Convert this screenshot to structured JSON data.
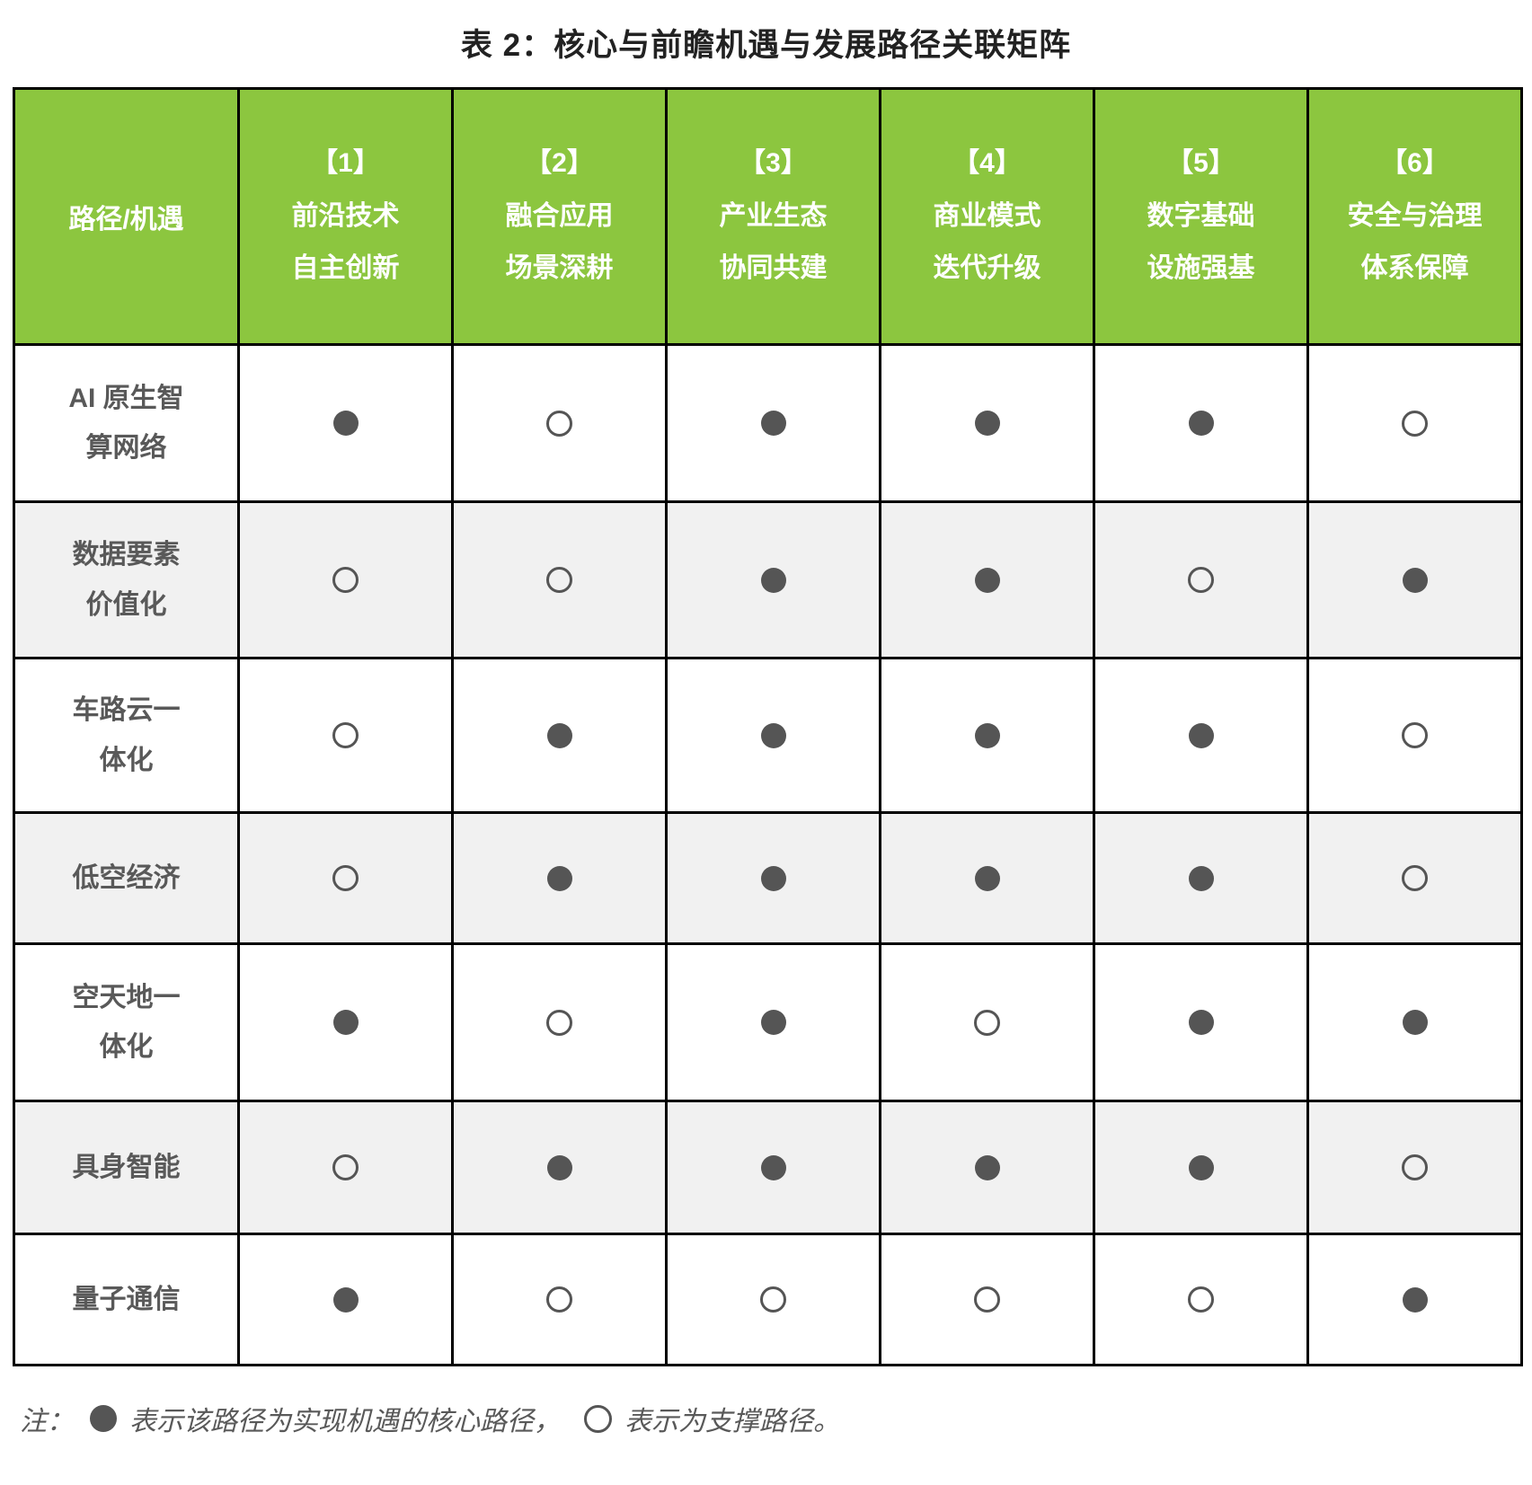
{
  "title": "表 2：核心与前瞻机遇与发展路径关联矩阵",
  "colors": {
    "header_bg": "#8CC63F",
    "header_text": "#FFFFFF",
    "alt_row_bg": "#F1F1F1",
    "border": "#000000",
    "dot": "#555555",
    "label_text": "#595959"
  },
  "table": {
    "corner_header": "路径/机遇",
    "columns": [
      {
        "tag": "【1】",
        "line1": "前沿技术",
        "line2": "自主创新"
      },
      {
        "tag": "【2】",
        "line1": "融合应用",
        "line2": "场景深耕"
      },
      {
        "tag": "【3】",
        "line1": "产业生态",
        "line2": "协同共建"
      },
      {
        "tag": "【4】",
        "line1": "商业模式",
        "line2": "迭代升级"
      },
      {
        "tag": "【5】",
        "line1": "数字基础",
        "line2": "设施强基"
      },
      {
        "tag": "【6】",
        "line1": "安全与治理",
        "line2": "体系保障"
      }
    ],
    "rows": [
      {
        "label": "AI 原生智\n算网络",
        "cells": [
          "core",
          "support",
          "core",
          "core",
          "core",
          "support"
        ]
      },
      {
        "label": "数据要素\n价值化",
        "cells": [
          "support",
          "support",
          "core",
          "core",
          "support",
          "core"
        ]
      },
      {
        "label": "车路云一\n体化",
        "cells": [
          "support",
          "core",
          "core",
          "core",
          "core",
          "support"
        ]
      },
      {
        "label": "低空经济",
        "cells": [
          "support",
          "core",
          "core",
          "core",
          "core",
          "support"
        ]
      },
      {
        "label": "空天地一\n体化",
        "cells": [
          "core",
          "support",
          "core",
          "support",
          "core",
          "core"
        ]
      },
      {
        "label": "具身智能",
        "cells": [
          "support",
          "core",
          "core",
          "core",
          "core",
          "support"
        ]
      },
      {
        "label": "量子通信",
        "cells": [
          "core",
          "support",
          "support",
          "support",
          "support",
          "core"
        ]
      }
    ]
  },
  "legend": {
    "prefix": "注：",
    "core_text": "表示该路径为实现机遇的核心路径，",
    "support_text": "表示为支撑路径。"
  }
}
